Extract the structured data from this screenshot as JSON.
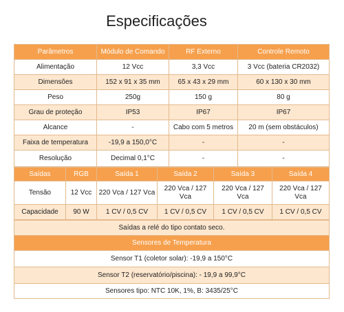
{
  "title": "Especificações",
  "table1": {
    "header": [
      "Parâmetros",
      "Módulo de Comando",
      "RF Externo",
      "Controle Remoto"
    ],
    "rows": [
      [
        "Alimentação",
        "12 Vcc",
        "3,3 Vcc",
        "3 Vcc (bateria CR2032)"
      ],
      [
        "Dimensões",
        "152 x 91 x 35 mm",
        "65 x 43 x 29 mm",
        "60 x 130 x 30 mm"
      ],
      [
        "Peso",
        "250g",
        "150 g",
        "80 g"
      ],
      [
        "Grau de proteção",
        "IP53",
        "IP67",
        "IP67"
      ],
      [
        "Alcance",
        "-",
        "Cabo com 5 metros",
        "20 m (sem obstáculos)"
      ],
      [
        "Faixa de temperatura",
        "-19,9 a 150,0°C",
        "-",
        "-"
      ],
      [
        "Resolução",
        "Decimal 0,1°C",
        "-",
        "-"
      ]
    ]
  },
  "table2": {
    "header": [
      "Saídas",
      "RGB",
      "Saída 1",
      "Saída 2",
      "Saída 3",
      "Saída 4"
    ],
    "rows": [
      [
        "Tensão",
        "12 Vcc",
        "220 Vca / 127 Vca",
        "220 Vca / 127 Vca",
        "220 Vca / 127 Vca",
        "220 Vca / 127 Vca"
      ],
      [
        "Capacidade",
        "90 W",
        "1 CV / 0,5 CV",
        "1 CV / 0,5 CV",
        "1 CV / 0,5 CV",
        "1 CV / 0,5 CV"
      ]
    ]
  },
  "note": "Saídas a relé do tipo contato seco.",
  "sensors": {
    "title": "Sensores de Temperatura",
    "rows": [
      "Sensor T1 (coletor solar): -19,9 a 150°C",
      "Sensor T2 (reservatório/piscina): - 19,9 a 99,9°C",
      "Sensores tipo: NTC 10K, 1%, B: 3435/25°C"
    ]
  }
}
